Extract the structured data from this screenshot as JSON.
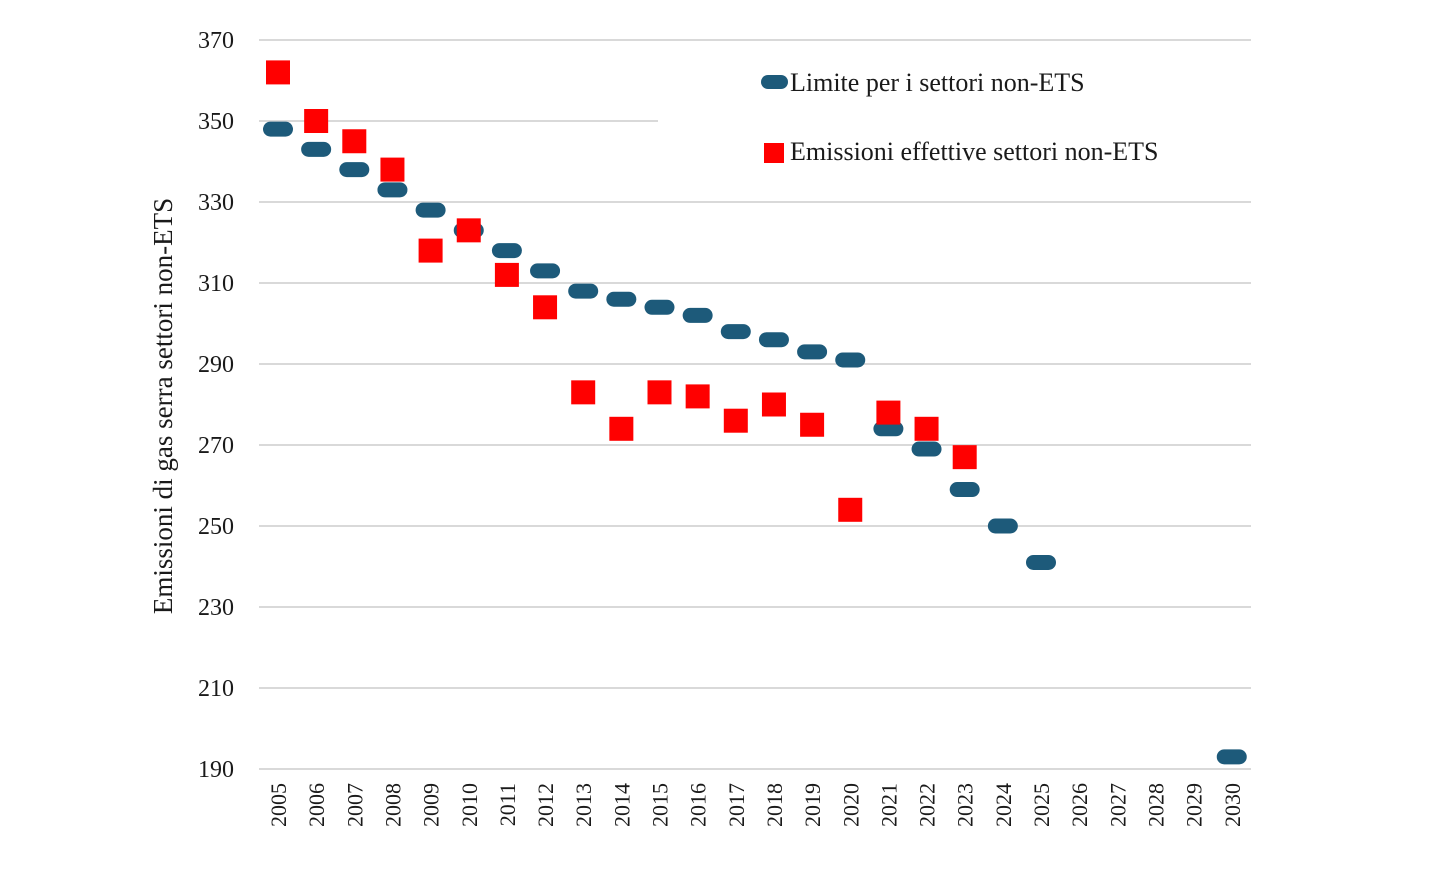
{
  "chart_data": {
    "type": "scatter",
    "title": "",
    "xlabel": "",
    "ylabel": "Emissioni di gas serra settori non-ETS",
    "ylim": [
      190,
      370
    ],
    "yticks": [
      190,
      210,
      230,
      250,
      270,
      290,
      310,
      330,
      350,
      370
    ],
    "categories": [
      "2005",
      "2006",
      "2007",
      "2008",
      "2009",
      "2010",
      "2011",
      "2012",
      "2013",
      "2014",
      "2015",
      "2016",
      "2017",
      "2018",
      "2019",
      "2020",
      "2021",
      "2022",
      "2023",
      "2024",
      "2025",
      "2026",
      "2027",
      "2028",
      "2029",
      "2030"
    ],
    "grid": true,
    "legend_position": "top-right",
    "series": [
      {
        "name": "Limite per i settori non-ETS",
        "marker": "dash",
        "color": "#1d5a7a",
        "values": [
          348,
          343,
          338,
          333,
          328,
          323,
          318,
          313,
          308,
          306,
          304,
          302,
          298,
          296,
          293,
          291,
          274,
          269,
          259,
          250,
          241,
          null,
          null,
          null,
          null,
          193
        ]
      },
      {
        "name": "Emissioni effettive settori non-ETS",
        "marker": "square",
        "color": "#ff0000",
        "values": [
          362,
          350,
          345,
          338,
          318,
          323,
          312,
          304,
          283,
          274,
          283,
          282,
          276,
          280,
          275,
          254,
          278,
          274,
          267,
          null,
          null,
          null,
          null,
          null,
          null,
          null
        ]
      }
    ]
  }
}
